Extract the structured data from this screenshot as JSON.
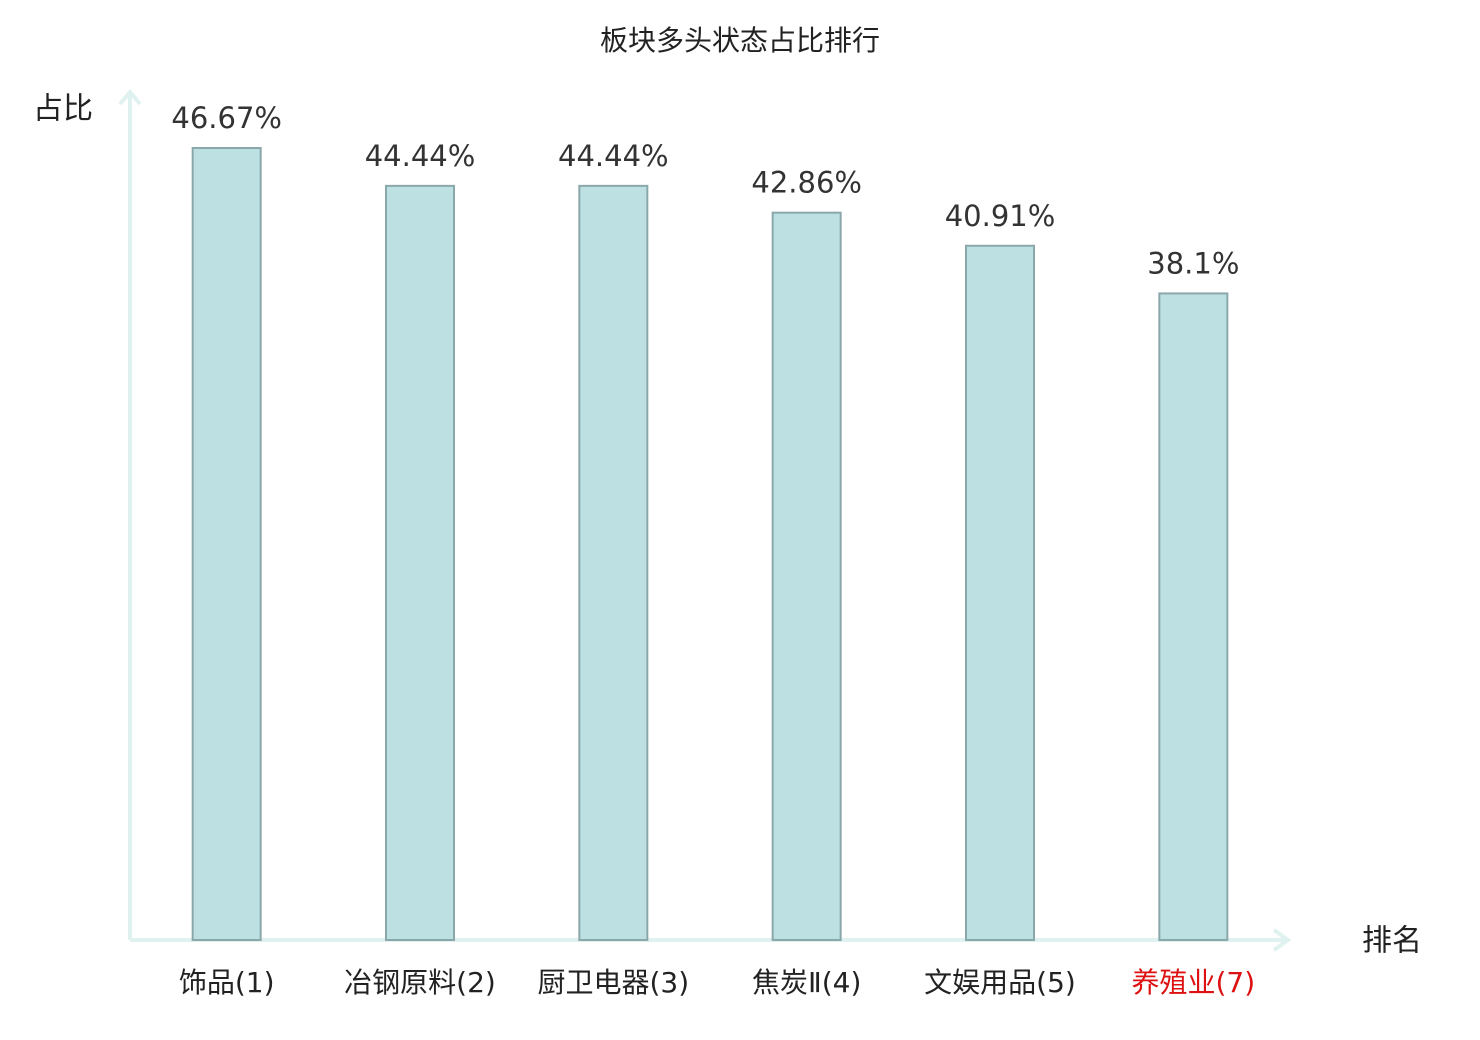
{
  "chart_data": {
    "type": "bar",
    "title": "板块多头状态占比排行",
    "y_label": "占比",
    "x_label": "排名",
    "categories": [
      "饰品(1)",
      "冶钢原料(2)",
      "厨卫电器(3)",
      "焦炭Ⅱ(4)",
      "文娱用品(5)",
      "养殖业(7)"
    ],
    "values": [
      46.67,
      44.44,
      44.44,
      42.86,
      40.91,
      38.1
    ],
    "value_labels": [
      "46.67%",
      "44.44%",
      "44.44%",
      "42.86%",
      "40.91%",
      "38.1%"
    ],
    "color": "#bde0e3",
    "edge_color": "#8aa8aa",
    "label_colors": [
      "#222222",
      "#222222",
      "#222222",
      "#222222",
      "#222222",
      "#dd1111"
    ],
    "ylim": [
      0,
      50
    ]
  }
}
